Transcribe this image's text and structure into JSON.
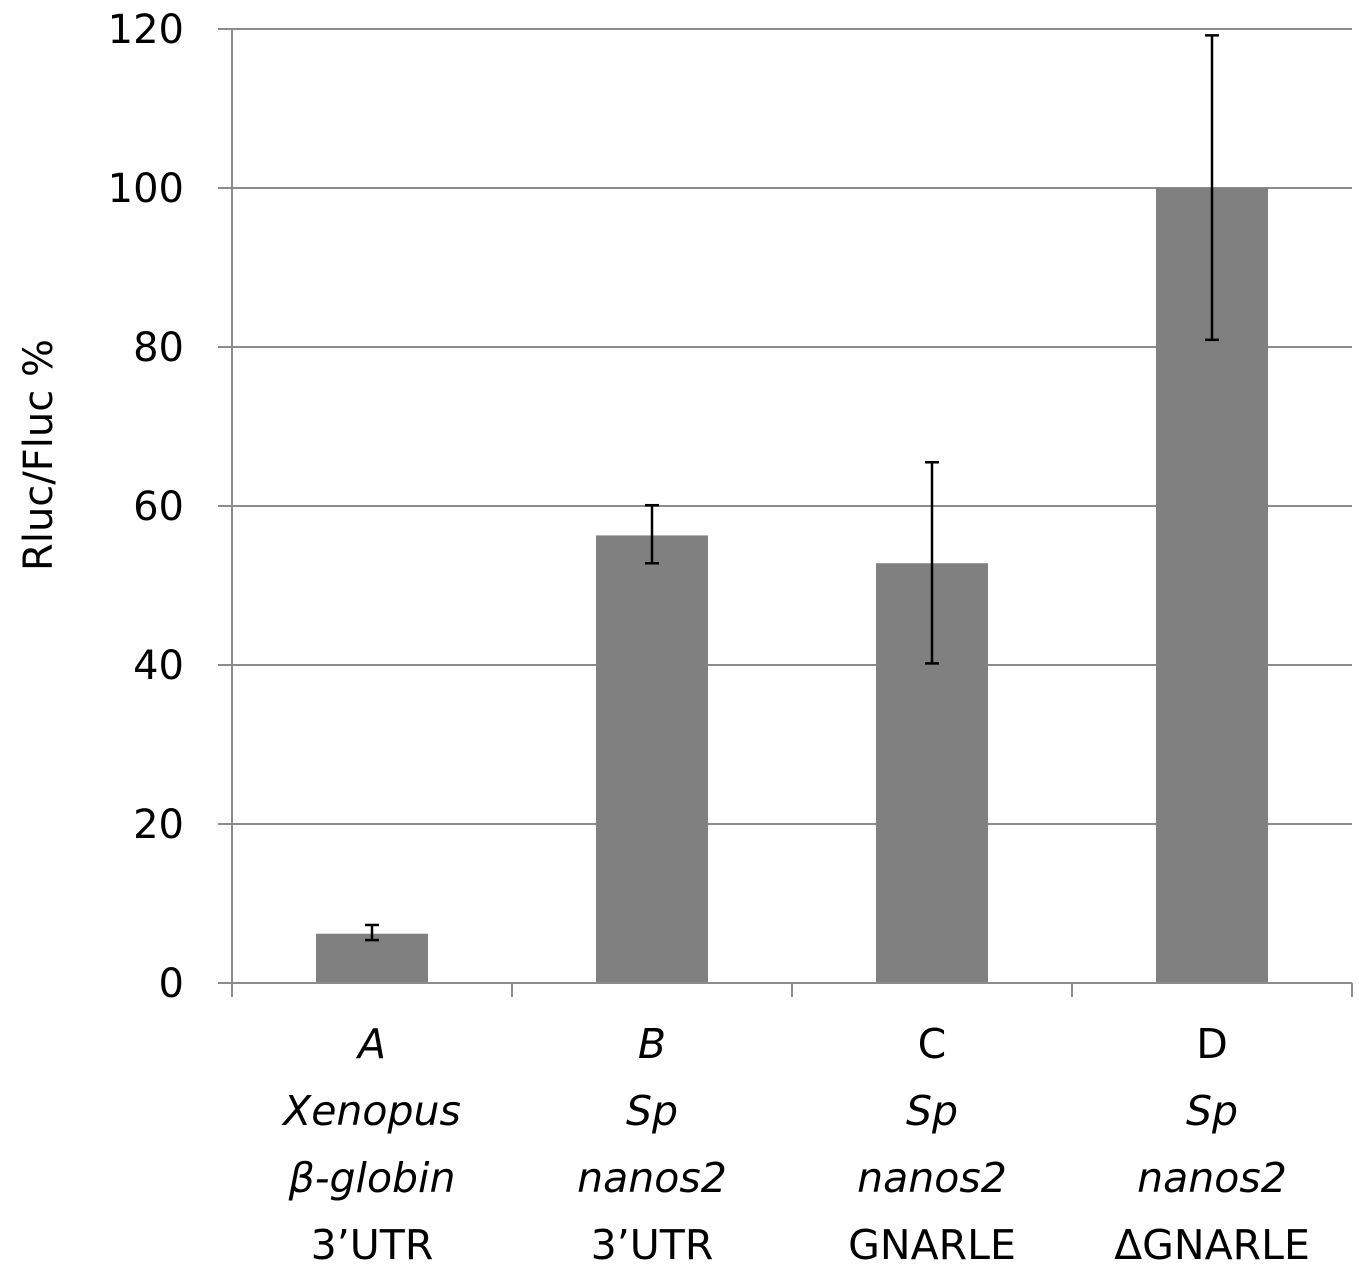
{
  "chart_data": {
    "type": "bar",
    "title": "",
    "xlabel": "",
    "ylabel": "Rluc/Fluc %",
    "ylim": [
      0,
      120
    ],
    "yticks": [
      "0",
      "20",
      "40",
      "60",
      "80",
      "100",
      "120"
    ],
    "grid": "horizontal",
    "bar_color": "#808080",
    "categories": [
      {
        "lines": [
          {
            "text": "A",
            "italic": true
          },
          {
            "text": "Xenopus",
            "italic": true
          },
          {
            "text": "β-globin",
            "italic": true
          },
          {
            "text": "3’UTR",
            "italic": false
          }
        ]
      },
      {
        "lines": [
          {
            "text": "B",
            "italic": true
          },
          {
            "text": "Sp",
            "italic": true
          },
          {
            "text": "nanos2",
            "italic": true
          },
          {
            "text": "3’UTR",
            "italic": false
          }
        ]
      },
      {
        "lines": [
          {
            "text": "C",
            "italic": false
          },
          {
            "text": "Sp",
            "italic": true
          },
          {
            "text": "nanos2",
            "italic": true
          },
          {
            "text": "GNARLE",
            "italic": false
          }
        ]
      },
      {
        "lines": [
          {
            "text": "D",
            "italic": false
          },
          {
            "text": "Sp",
            "italic": true
          },
          {
            "text": "nanos2",
            "italic": true
          },
          {
            "text": "ΔGNARLE",
            "italic": false
          }
        ]
      }
    ],
    "values": [
      6.2,
      56.3,
      52.8,
      100
    ],
    "error_low": [
      5.4,
      52.8,
      40.2,
      80.9
    ],
    "error_high": [
      7.3,
      60.1,
      65.5,
      119.2
    ]
  }
}
